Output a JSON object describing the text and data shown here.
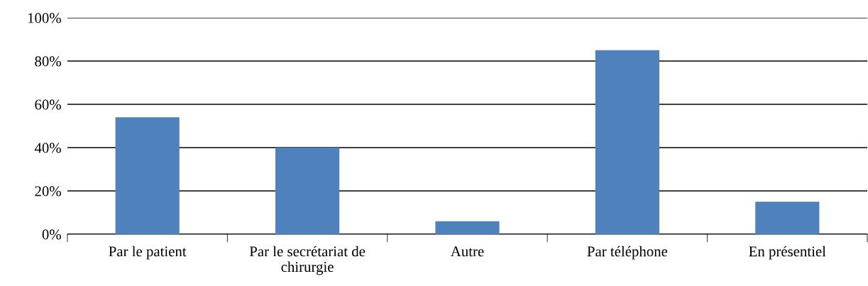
{
  "chart_data": {
    "type": "bar",
    "categories": [
      "Par le patient",
      "Par le secrétariat de\nchirurgie",
      "Autre",
      "Par téléphone",
      "En présentiel"
    ],
    "values": [
      54,
      40,
      6,
      85,
      15
    ],
    "color": "#4f81bd",
    "ylim": [
      0,
      100
    ],
    "yticks": [
      {
        "value": 0,
        "label": "0%"
      },
      {
        "value": 20,
        "label": "20%"
      },
      {
        "value": 40,
        "label": "40%"
      },
      {
        "value": 60,
        "label": "60%"
      },
      {
        "value": 80,
        "label": "80%"
      },
      {
        "value": 100,
        "label": "100%"
      }
    ],
    "grid": "y"
  }
}
